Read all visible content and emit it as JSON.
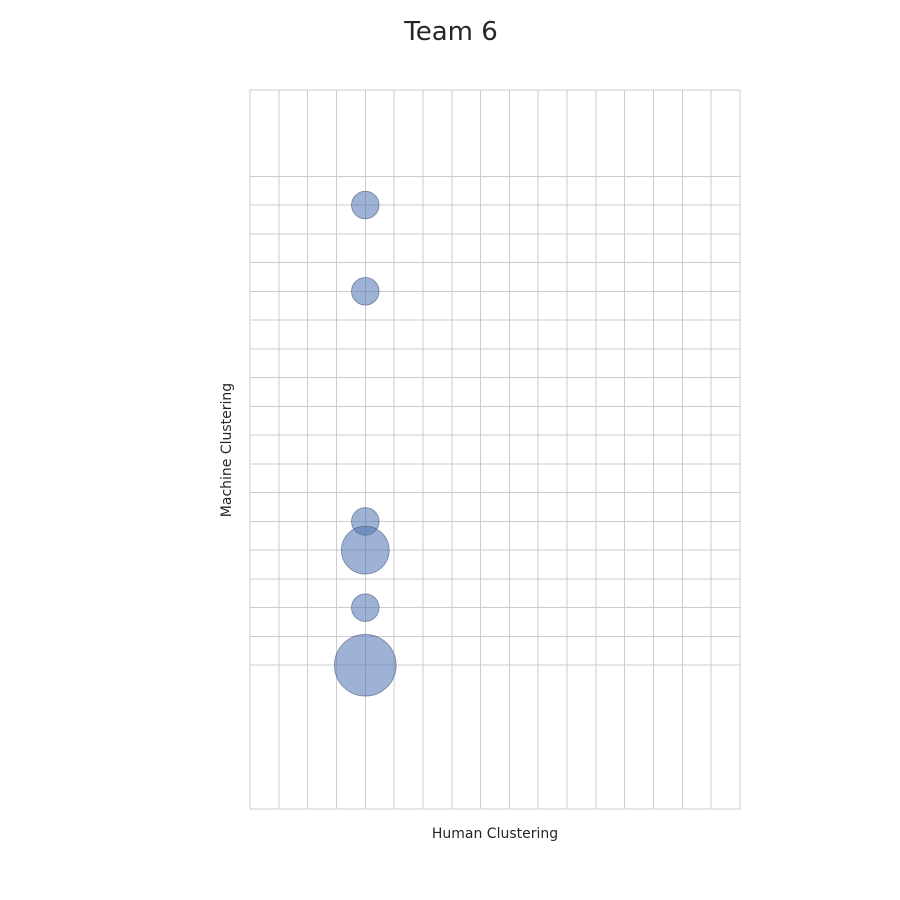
{
  "chart_data": {
    "type": "scatter",
    "title": "Team 6",
    "xlabel": "Human Clustering",
    "ylabel": "Machine Clustering",
    "xlim": [
      0,
      17
    ],
    "ylim": [
      0,
      25
    ],
    "x_grid": [
      0,
      1,
      2,
      3,
      4,
      5,
      6,
      7,
      8,
      9,
      10,
      11,
      12,
      13,
      14,
      15,
      16,
      17
    ],
    "y_grid": [
      5,
      6,
      7,
      8,
      9,
      10,
      11,
      12,
      13,
      14,
      15,
      16,
      17,
      18,
      19,
      20,
      21,
      22
    ],
    "grid": true,
    "legend": "none",
    "color": "#4c72b0",
    "edge_color": "#3a4a6b",
    "opacity": 0.55,
    "points": [
      {
        "x": 4,
        "y": 21,
        "count": 1
      },
      {
        "x": 4,
        "y": 18,
        "count": 1
      },
      {
        "x": 4,
        "y": 10,
        "count": 1
      },
      {
        "x": 4,
        "y": 9,
        "count": 3
      },
      {
        "x": 4,
        "y": 7,
        "count": 1
      },
      {
        "x": 4,
        "y": 5,
        "count": 5
      }
    ]
  }
}
